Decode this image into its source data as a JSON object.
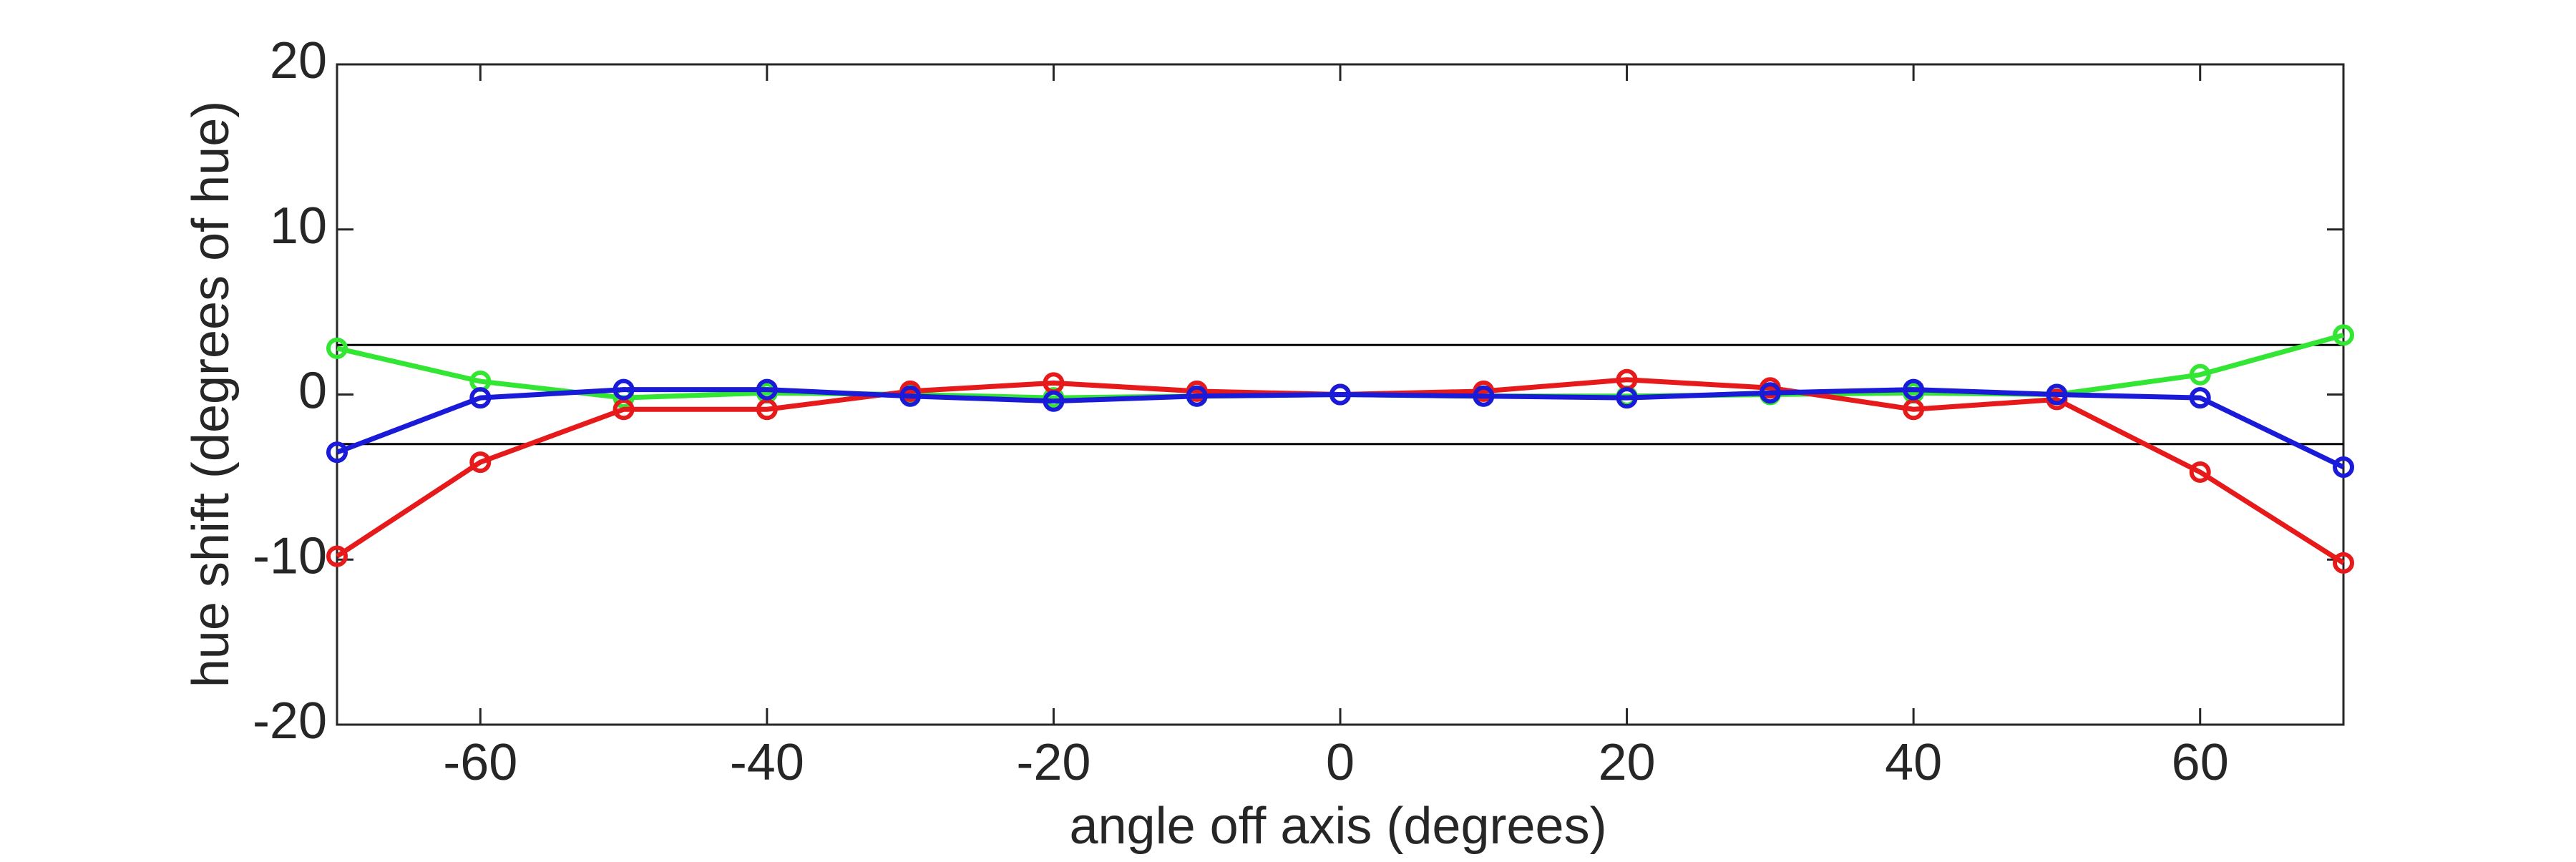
{
  "chart_data": {
    "type": "line",
    "x_label": "angle off axis (degrees)",
    "y_label": "hue shift (degrees of hue)",
    "x": [
      -70,
      -60,
      -50,
      -40,
      -30,
      -20,
      -10,
      0,
      10,
      20,
      30,
      40,
      50,
      60,
      70
    ],
    "series": [
      {
        "color": "#33e633",
        "values": [
          2.8,
          0.8,
          -0.2,
          0.1,
          0,
          -0.2,
          -0.1,
          0,
          -0.1,
          -0.1,
          0,
          0.1,
          0,
          1.2,
          3.6
        ]
      },
      {
        "color": "#e61a1a",
        "values": [
          -9.8,
          -4.1,
          -0.9,
          -0.9,
          0.2,
          0.7,
          0.2,
          0,
          0.2,
          0.9,
          0.4,
          -0.9,
          -0.3,
          -4.7,
          -10.2
        ]
      },
      {
        "color": "#1a1ad9",
        "values": [
          -3.5,
          -0.2,
          0.3,
          0.3,
          -0.1,
          -0.4,
          -0.1,
          0,
          -0.1,
          -0.2,
          0.1,
          0.3,
          0,
          -0.2,
          -4.4
        ]
      }
    ],
    "hlines": [
      3,
      -3
    ],
    "xlim": [
      -70,
      70
    ],
    "xticks": [
      -60,
      -40,
      -20,
      0,
      20,
      40,
      60
    ],
    "ylim": [
      -20,
      20
    ],
    "yticks": [
      -20,
      -10,
      0,
      10,
      20
    ],
    "grid": false
  }
}
